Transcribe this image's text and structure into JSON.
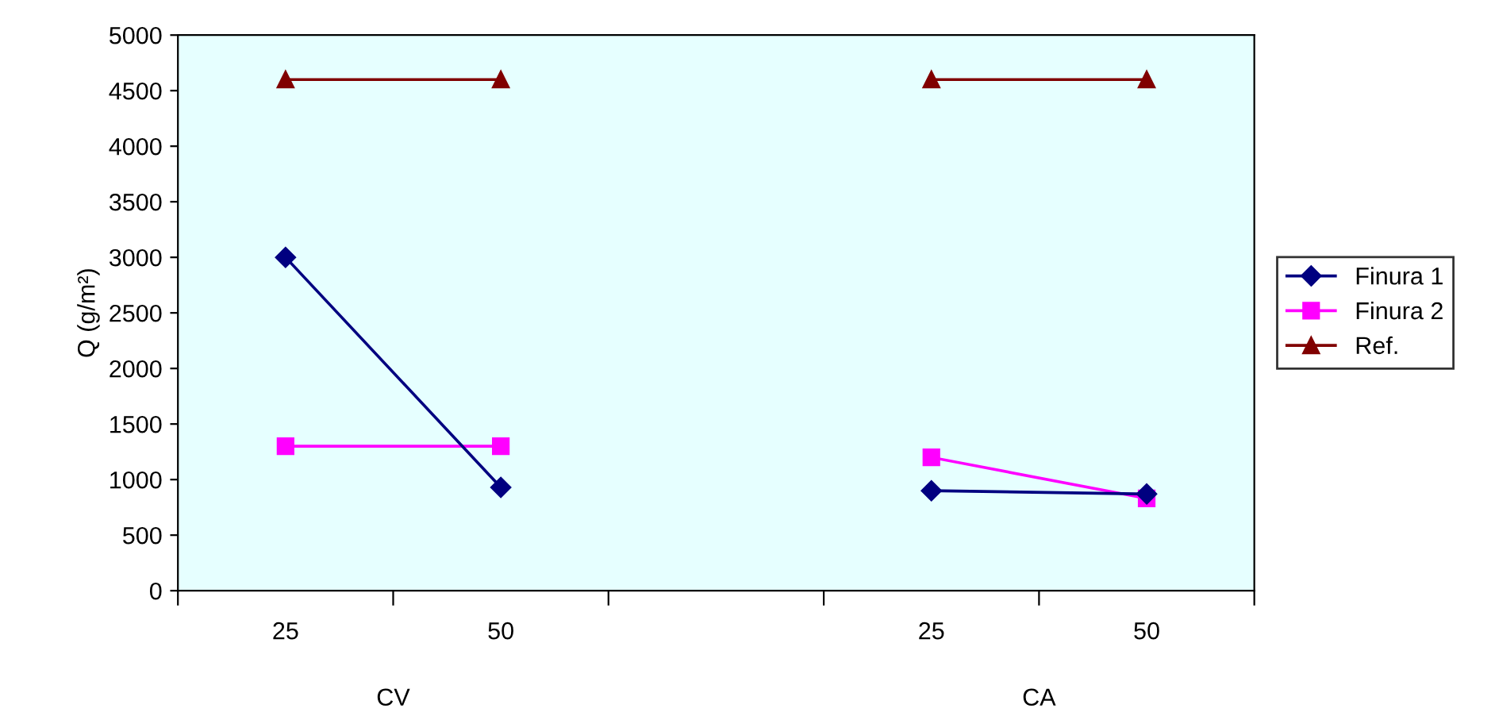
{
  "chart_data": {
    "type": "line",
    "ylabel": "Q (g/m²)",
    "categories": [
      "25",
      "50",
      null,
      "25",
      "50"
    ],
    "series": [
      {
        "name": "Finura 1",
        "color": "#000080",
        "marker": "diamond",
        "values": [
          3000,
          930,
          null,
          900,
          870
        ]
      },
      {
        "name": "Finura 2",
        "color": "#ff00ff",
        "marker": "square",
        "values": [
          1300,
          1300,
          null,
          1200,
          830
        ]
      },
      {
        "name": "Ref.",
        "color": "#800000",
        "marker": "triangle",
        "values": [
          4600,
          4600,
          null,
          4600,
          4600
        ]
      }
    ],
    "ylim": [
      0,
      5000
    ],
    "yticks": [
      0,
      500,
      1000,
      1500,
      2000,
      2500,
      3000,
      3500,
      4000,
      4500,
      5000
    ],
    "annotations": [
      "CV",
      "CA"
    ],
    "grid": false,
    "legend": "right"
  }
}
